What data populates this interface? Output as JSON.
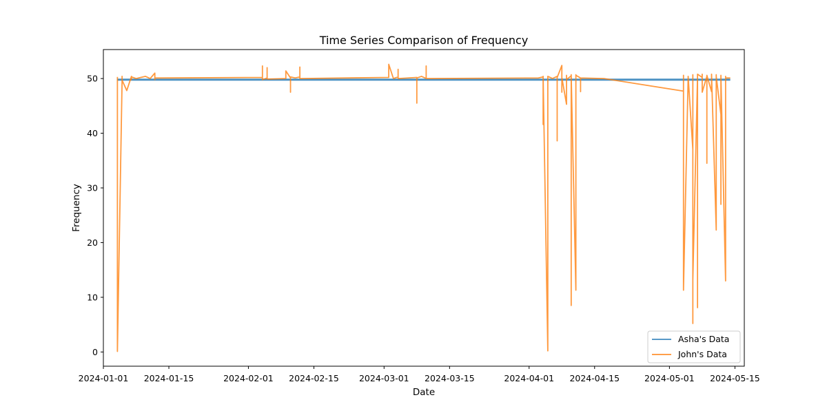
{
  "chart_data": {
    "type": "line",
    "title": "Time Series Comparison of Frequency",
    "xlabel": "Date",
    "ylabel": "Frequency",
    "xlim": [
      "2024-01-01",
      "2024-05-17"
    ],
    "ylim": [
      -2.6,
      55.3
    ],
    "x_ticks": [
      "2024-01-01",
      "2024-01-15",
      "2024-02-01",
      "2024-02-15",
      "2024-03-01",
      "2024-03-15",
      "2024-04-01",
      "2024-04-15",
      "2024-05-01",
      "2024-05-15"
    ],
    "y_ticks": [
      0,
      10,
      20,
      30,
      40,
      50
    ],
    "grid": false,
    "legend": "bottom-right",
    "series": [
      {
        "name": "Asha's Data",
        "color": "#1f77b4",
        "x": [
          "2024-01-04",
          "2024-05-14"
        ],
        "y": [
          49.8,
          49.8
        ]
      },
      {
        "name": "John's Data",
        "color": "#ff7f0e",
        "x": [
          "2024-01-04",
          "2024-01-04",
          "2024-01-04",
          "2024-01-05",
          "2024-01-05",
          "2024-01-05",
          "2024-01-06",
          "2024-01-07",
          "2024-01-07",
          "2024-01-07",
          "2024-01-08",
          "2024-01-10",
          "2024-01-11",
          "2024-01-12",
          "2024-01-12",
          "2024-01-12",
          "2024-01-13",
          "2024-02-04",
          "2024-02-04",
          "2024-02-04",
          "2024-02-05",
          "2024-02-05",
          "2024-02-05",
          "2024-02-09",
          "2024-02-09",
          "2024-02-10",
          "2024-02-10",
          "2024-02-10",
          "2024-02-11",
          "2024-02-12",
          "2024-02-12",
          "2024-02-12",
          "2024-03-02",
          "2024-03-02",
          "2024-03-03",
          "2024-03-04",
          "2024-03-04",
          "2024-03-04",
          "2024-03-08",
          "2024-03-08",
          "2024-03-08",
          "2024-03-09",
          "2024-03-10",
          "2024-03-10",
          "2024-03-10",
          "2024-04-03",
          "2024-04-04",
          "2024-04-04",
          "2024-04-04",
          "2024-04-05",
          "2024-04-05",
          "2024-04-05",
          "2024-04-06",
          "2024-04-07",
          "2024-04-07",
          "2024-04-07",
          "2024-04-08",
          "2024-04-08",
          "2024-04-08",
          "2024-04-09",
          "2024-04-09",
          "2024-04-09",
          "2024-04-10",
          "2024-04-10",
          "2024-04-10",
          "2024-04-10",
          "2024-04-11",
          "2024-04-11",
          "2024-04-11",
          "2024-04-11",
          "2024-04-12",
          "2024-04-12",
          "2024-04-12",
          "2024-04-17",
          "2024-05-04",
          "2024-05-04",
          "2024-05-04",
          "2024-05-05",
          "2024-05-05",
          "2024-05-05",
          "2024-05-06",
          "2024-05-06",
          "2024-05-06",
          "2024-05-06",
          "2024-05-06",
          "2024-05-06",
          "2024-05-07",
          "2024-05-07",
          "2024-05-07",
          "2024-05-08",
          "2024-05-08",
          "2024-05-08",
          "2024-05-09",
          "2024-05-09",
          "2024-05-09",
          "2024-05-10",
          "2024-05-10",
          "2024-05-10",
          "2024-05-11",
          "2024-05-11",
          "2024-05-11",
          "2024-05-12",
          "2024-05-12",
          "2024-05-12",
          "2024-05-12",
          "2024-05-13",
          "2024-05-13",
          "2024-05-13",
          "2024-05-14"
        ],
        "y": [
          50.3,
          49.5,
          0.1,
          49.6,
          50.4,
          49.7,
          47.8,
          50.4,
          49.8,
          50.3,
          50.0,
          50.4,
          50.0,
          51.0,
          49.8,
          50.1,
          50.1,
          50.2,
          52.3,
          49.8,
          50.1,
          52.0,
          49.9,
          50.0,
          51.4,
          50.1,
          47.5,
          50.3,
          50.1,
          50.3,
          52.1,
          50.0,
          50.2,
          52.6,
          50.0,
          50.3,
          51.7,
          50.0,
          50.2,
          45.5,
          50.1,
          50.4,
          50.0,
          52.3,
          50.0,
          50.1,
          50.3,
          41.6,
          50.4,
          0.2,
          50.3,
          50.4,
          50.0,
          50.4,
          38.6,
          50.2,
          52.4,
          47.5,
          50.2,
          45.3,
          50.6,
          49.8,
          50.5,
          8.5,
          16.4,
          50.7,
          11.3,
          50.7,
          48.7,
          50.6,
          50.1,
          47.6,
          50.1,
          50.0,
          47.7,
          50.6,
          11.3,
          50.3,
          47.6,
          50.4,
          37.0,
          5.3,
          50.3,
          5.2,
          50.7,
          13.2,
          50.4,
          8.1,
          50.8,
          50.2,
          50.8,
          47.5,
          50.4,
          34.5,
          50.6,
          47.6,
          50.5,
          50.8,
          22.3,
          50.7,
          50.4,
          43.4,
          50.6,
          27.0,
          50.5,
          13.0,
          50.4,
          50.1,
          50.1
        ]
      }
    ]
  }
}
